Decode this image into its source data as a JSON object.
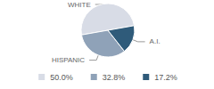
{
  "chart_data": {
    "type": "pie",
    "categories": [
      "WHITE",
      "HISPANIC",
      "A.I."
    ],
    "values": [
      50,
      32.8,
      17.2
    ],
    "value_labels": [
      "50.0%",
      "32.8%",
      "17.2%"
    ],
    "colors": [
      "#d8dce6",
      "#8fa2b8",
      "#2f5b7a"
    ],
    "legend": "bottom"
  }
}
